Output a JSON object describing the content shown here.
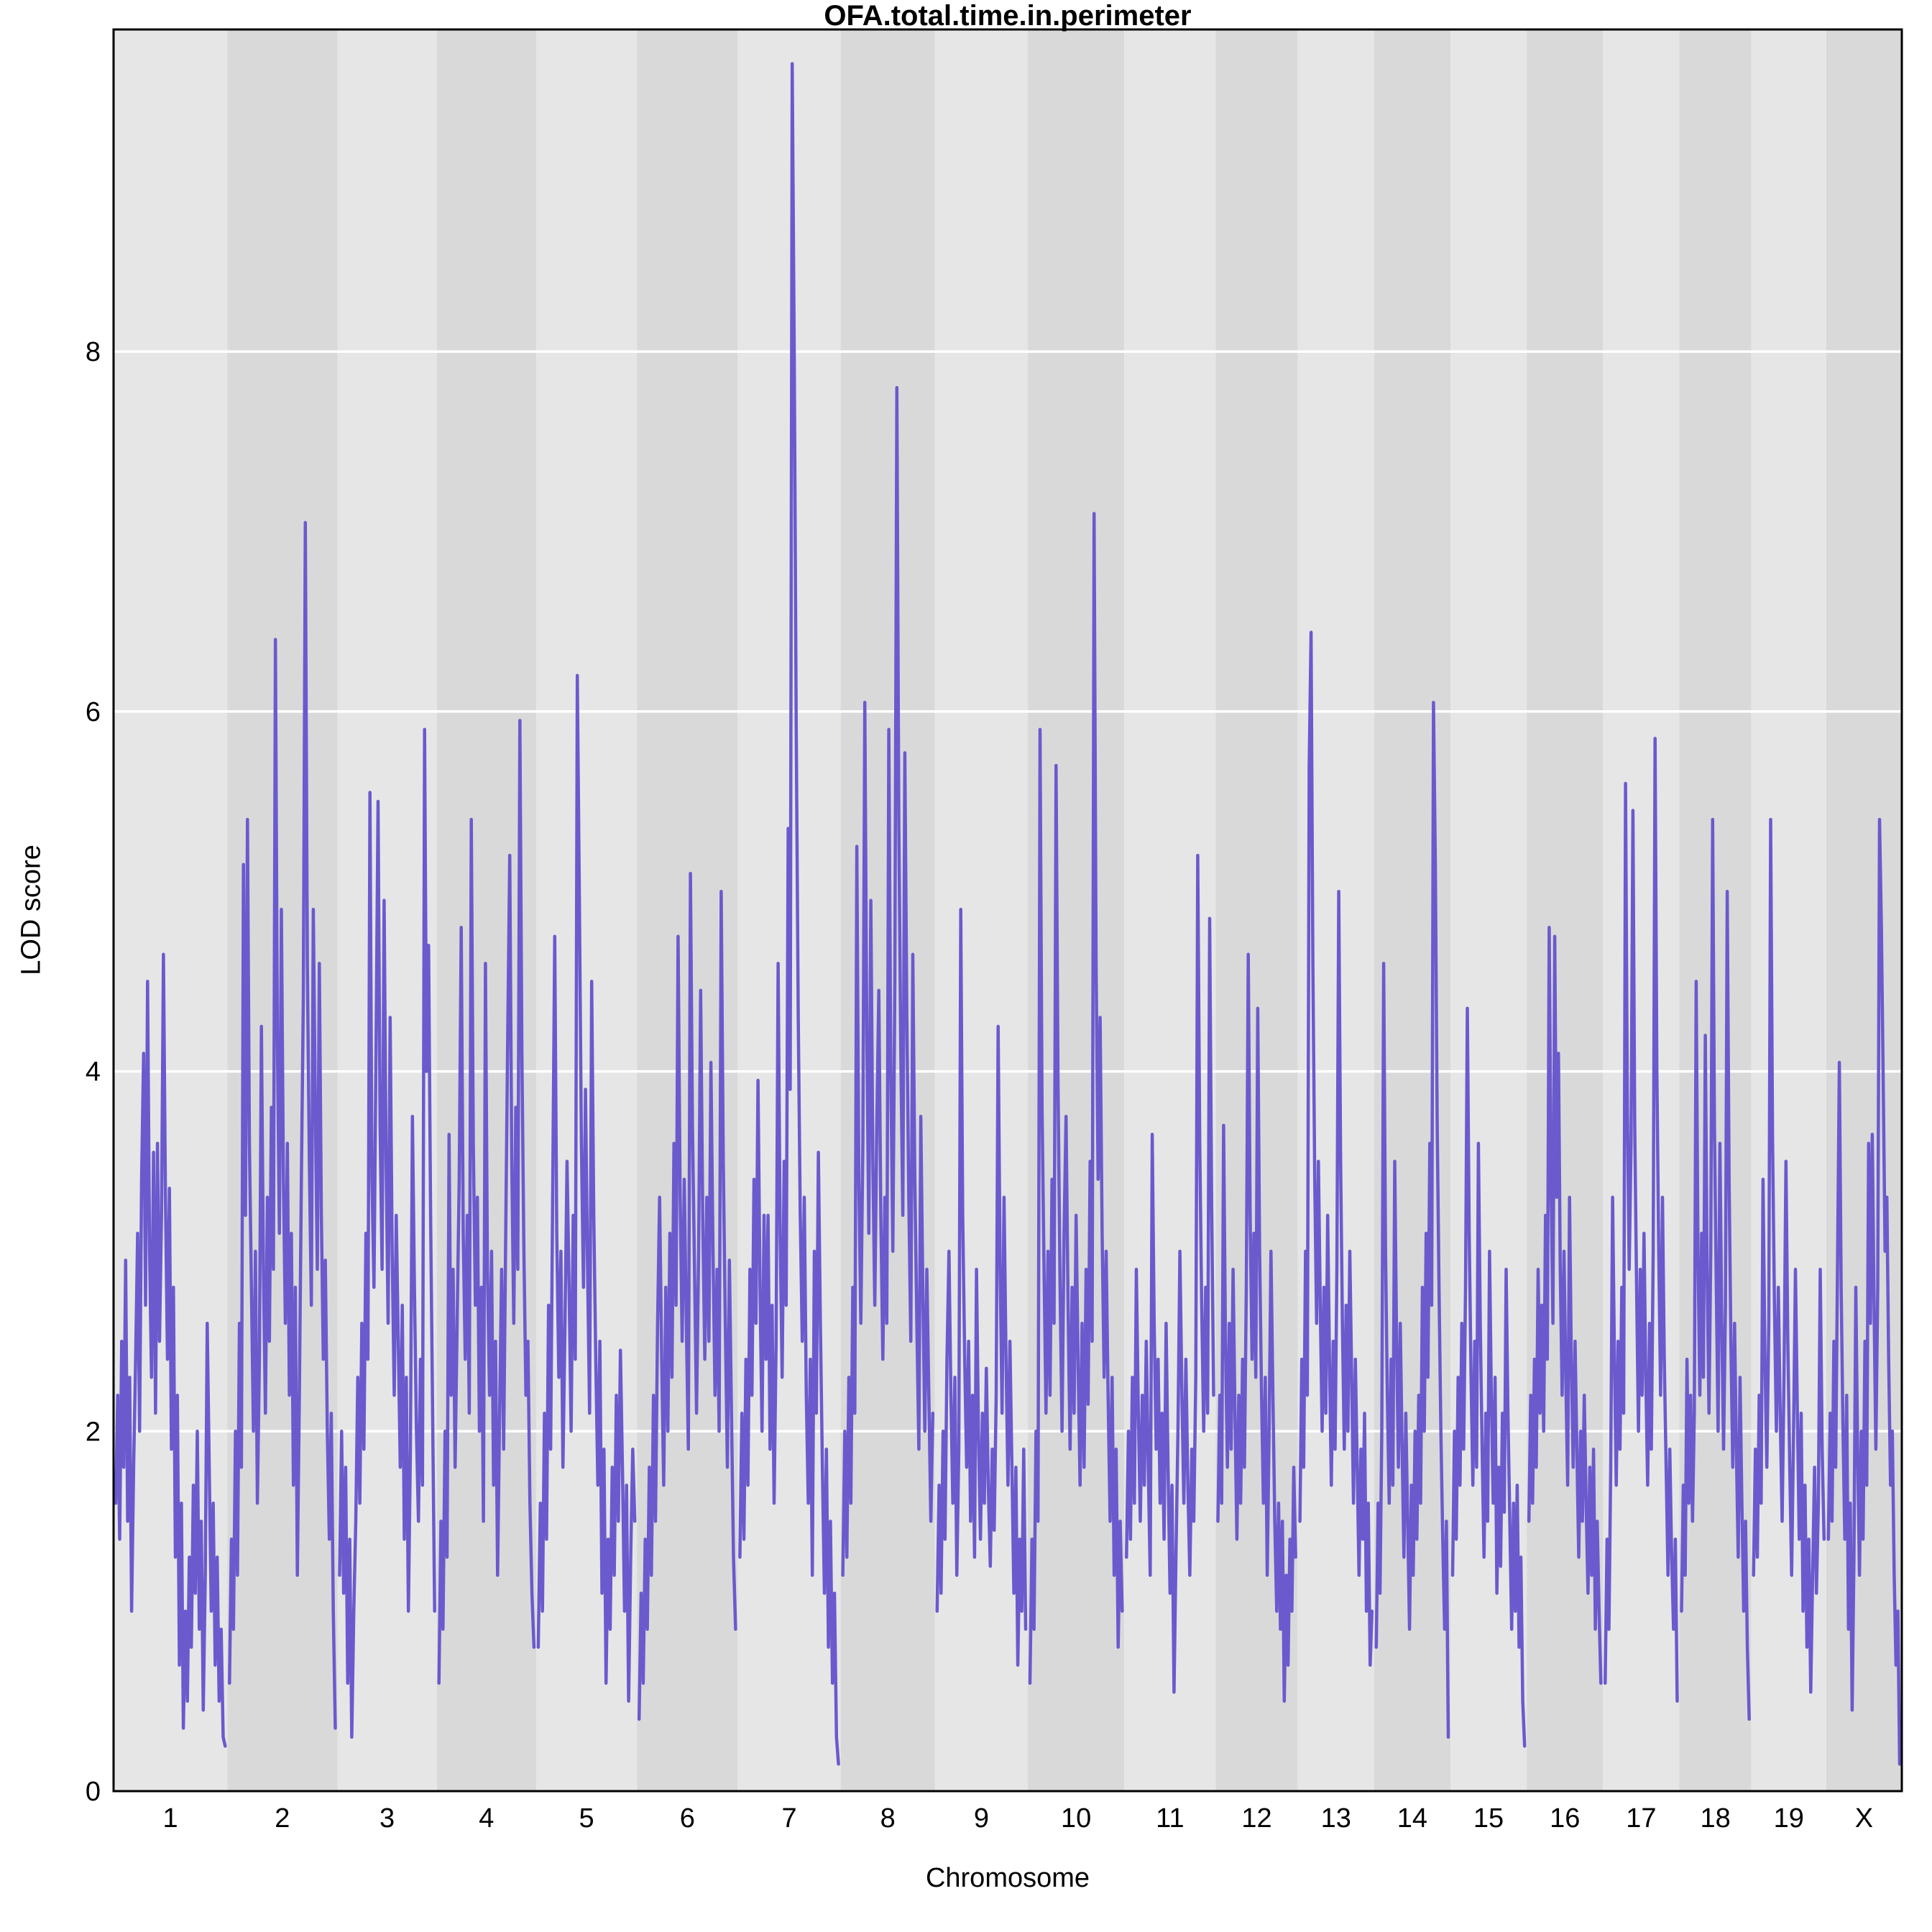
{
  "chart_data": {
    "type": "line",
    "title": "OFA.total.time.in.perimeter",
    "xlabel": "Chromosome",
    "ylabel": "LOD score",
    "ylim": [
      0,
      9.79
    ],
    "y_ticks": [
      0,
      2,
      4,
      6,
      8
    ],
    "grid": "horizontal-white-lines-at-ticks",
    "legend": "none",
    "series_name": "LOD",
    "series_color": "#6a5acd",
    "band_colors": [
      "#e6e6e6",
      "#d9d9d9"
    ],
    "grid_color": "#ffffff",
    "border_color": "#000000",
    "text_color": "#000000",
    "background_color": "#ffffff",
    "chromosomes": [
      {
        "label": "1",
        "width": 158,
        "lod": [
          1.6,
          2.2,
          1.4,
          2.5,
          1.8,
          2.95,
          1.5,
          2.3,
          1.0,
          1.8,
          2.4,
          3.1,
          2.0,
          3.4,
          4.1,
          2.7,
          4.5,
          3.0,
          2.3,
          3.55,
          2.1,
          3.6,
          2.5,
          3.2,
          4.65,
          3.3,
          2.4,
          3.35,
          1.9,
          2.8,
          1.3,
          2.2,
          0.7,
          1.6,
          0.35,
          1.0,
          0.5,
          1.3,
          0.8,
          1.7,
          1.1,
          2.0,
          0.9,
          1.5,
          0.45,
          1.2,
          2.6,
          1.8,
          1.0,
          1.6,
          0.7,
          1.3,
          0.5,
          0.9,
          0.3,
          0.25
        ]
      },
      {
        "label": "2",
        "width": 153,
        "lod": [
          0.6,
          1.4,
          0.9,
          2.0,
          1.2,
          2.6,
          1.8,
          5.15,
          3.2,
          5.4,
          3.6,
          2.8,
          2.0,
          3.0,
          1.6,
          2.4,
          4.25,
          2.9,
          2.1,
          3.3,
          2.5,
          3.8,
          2.9,
          6.4,
          4.2,
          3.1,
          4.9,
          3.4,
          2.6,
          3.6,
          2.2,
          3.1,
          1.7,
          2.8,
          1.2,
          2.2,
          3.4,
          4.4,
          7.05,
          4.6,
          3.5,
          2.7,
          4.9,
          3.8,
          2.9,
          4.6,
          3.2,
          2.4,
          2.95,
          2.0,
          1.4,
          2.1,
          1.0,
          0.35
        ]
      },
      {
        "label": "3",
        "width": 138,
        "lod": [
          1.2,
          2.0,
          1.1,
          1.8,
          0.6,
          1.4,
          0.3,
          1.0,
          1.5,
          2.3,
          1.6,
          2.6,
          1.9,
          3.1,
          2.4,
          5.55,
          3.4,
          2.8,
          4.1,
          5.5,
          3.7,
          2.9,
          4.95,
          3.5,
          2.6,
          4.3,
          3.0,
          2.2,
          3.2,
          2.5,
          1.8,
          2.7,
          1.4,
          2.3,
          1.0,
          1.9,
          3.75,
          2.8,
          2.0,
          1.5,
          2.4,
          1.7,
          5.9,
          4.0,
          4.7,
          3.2,
          2.1,
          1.0
        ]
      },
      {
        "label": "4",
        "width": 138,
        "lod": [
          0.6,
          1.5,
          0.9,
          2.0,
          1.3,
          3.65,
          2.2,
          2.9,
          1.8,
          2.6,
          3.4,
          4.8,
          3.1,
          2.4,
          3.2,
          2.1,
          5.4,
          3.6,
          2.7,
          3.3,
          2.0,
          2.8,
          1.5,
          4.6,
          2.9,
          2.2,
          3.0,
          1.7,
          2.5,
          1.2,
          2.1,
          2.9,
          1.9,
          3.1,
          4.2,
          5.2,
          3.5,
          2.6,
          3.8,
          2.9,
          5.95,
          4.1,
          3.0,
          2.2,
          2.5,
          1.6,
          1.1,
          0.8
        ]
      },
      {
        "label": "5",
        "width": 140,
        "lod": [
          0.8,
          1.6,
          1.0,
          2.1,
          1.4,
          2.7,
          1.9,
          3.3,
          4.75,
          3.1,
          2.3,
          3.0,
          1.8,
          2.6,
          3.5,
          2.8,
          2.0,
          3.2,
          2.4,
          6.2,
          4.95,
          3.6,
          2.8,
          3.9,
          2.9,
          2.1,
          4.5,
          3.2,
          2.4,
          1.7,
          2.5,
          1.1,
          1.9,
          0.6,
          1.4,
          0.9,
          1.8,
          1.2,
          2.2,
          1.5,
          2.45,
          1.8,
          1.0,
          1.7,
          0.5,
          1.3,
          1.9,
          1.5
        ]
      },
      {
        "label": "6",
        "width": 140,
        "lod": [
          0.4,
          1.1,
          0.6,
          1.4,
          0.9,
          1.8,
          1.2,
          2.2,
          1.5,
          2.6,
          3.3,
          2.4,
          1.7,
          2.8,
          2.0,
          3.1,
          2.3,
          3.6,
          2.7,
          4.75,
          3.3,
          2.5,
          3.4,
          2.6,
          1.9,
          5.1,
          3.7,
          2.9,
          2.1,
          3.0,
          4.45,
          3.2,
          2.4,
          3.3,
          2.5,
          4.05,
          3.0,
          2.2,
          2.9,
          2.0,
          5.0,
          3.5,
          2.6,
          1.8,
          2.95,
          2.1,
          1.3,
          0.9
        ]
      },
      {
        "label": "7",
        "width": 143,
        "lod": [
          1.3,
          2.1,
          1.4,
          2.4,
          1.7,
          2.9,
          2.2,
          3.4,
          2.6,
          3.95,
          2.8,
          2.0,
          3.2,
          2.4,
          3.2,
          1.9,
          2.7,
          1.6,
          2.5,
          4.6,
          3.1,
          2.3,
          3.5,
          2.7,
          5.35,
          3.9,
          9.6,
          8.0,
          5.9,
          4.3,
          3.2,
          2.5,
          3.3,
          2.2,
          1.6,
          2.4,
          1.2,
          3.0,
          2.1,
          3.55,
          2.6,
          1.8,
          1.1,
          1.9,
          0.8,
          1.5,
          0.6,
          1.1,
          0.3,
          0.15
        ]
      },
      {
        "label": "8",
        "width": 131,
        "lod": [
          1.2,
          2.0,
          1.3,
          2.3,
          1.6,
          2.8,
          2.1,
          5.25,
          3.4,
          2.6,
          3.6,
          6.05,
          4.2,
          3.1,
          4.95,
          3.5,
          2.7,
          3.7,
          4.45,
          3.2,
          2.4,
          3.3,
          2.6,
          5.9,
          4.0,
          3.0,
          4.5,
          7.8,
          5.4,
          4.1,
          3.2,
          5.77,
          4.3,
          3.3,
          2.5,
          4.65,
          3.4,
          2.6,
          1.9,
          3.75,
          2.8,
          2.0,
          2.9,
          2.2,
          1.5,
          2.1
        ]
      },
      {
        "label": "9",
        "width": 129,
        "lod": [
          1.0,
          1.7,
          1.1,
          2.0,
          1.4,
          2.4,
          3.0,
          2.2,
          1.6,
          2.3,
          1.2,
          1.9,
          4.9,
          3.2,
          2.4,
          1.8,
          2.5,
          1.5,
          2.2,
          1.3,
          2.9,
          2.0,
          1.4,
          2.1,
          1.6,
          2.35,
          1.7,
          1.25,
          1.9,
          1.45,
          2.2,
          4.25,
          2.9,
          2.1,
          3.3,
          2.4,
          1.7,
          2.5,
          1.8,
          1.1,
          1.8,
          0.7,
          1.4,
          1.0,
          1.9,
          0.9
        ]
      },
      {
        "label": "10",
        "width": 134,
        "lod": [
          0.6,
          1.4,
          0.9,
          2.0,
          1.5,
          5.9,
          3.8,
          2.9,
          2.1,
          3.0,
          2.2,
          3.4,
          2.6,
          5.7,
          3.9,
          2.8,
          2.0,
          3.1,
          3.75,
          2.7,
          1.9,
          2.8,
          2.1,
          3.2,
          2.4,
          1.7,
          2.6,
          1.8,
          2.9,
          2.15,
          3.5,
          2.5,
          7.1,
          4.6,
          3.4,
          4.3,
          3.1,
          2.3,
          3.0,
          2.2,
          1.5,
          2.3,
          1.2,
          1.9,
          0.8,
          1.5,
          1.0
        ]
      },
      {
        "label": "11",
        "width": 127,
        "lod": [
          1.3,
          2.0,
          1.4,
          2.3,
          1.6,
          2.9,
          2.1,
          1.5,
          2.2,
          1.7,
          2.5,
          1.8,
          1.2,
          3.65,
          2.6,
          1.9,
          2.4,
          1.6,
          2.1,
          1.4,
          2.6,
          1.8,
          1.1,
          1.7,
          0.55,
          1.3,
          2.0,
          3.0,
          2.2,
          1.6,
          2.4,
          1.7,
          1.2,
          1.9,
          1.5,
          2.3,
          5.2,
          3.6,
          2.7,
          2.0,
          2.8,
          2.1,
          4.85,
          3.3,
          2.2
        ]
      },
      {
        "label": "12",
        "width": 114,
        "lod": [
          1.5,
          2.2,
          1.6,
          3.7,
          2.5,
          1.8,
          2.6,
          1.9,
          2.9,
          2.1,
          1.4,
          2.2,
          1.6,
          2.4,
          1.8,
          2.8,
          4.65,
          3.2,
          2.4,
          3.1,
          2.3,
          4.35,
          3.0,
          2.2,
          1.6,
          2.3,
          1.2,
          2.0,
          3.0,
          2.2,
          1.5,
          1.0,
          1.6,
          0.9,
          1.5,
          0.5,
          1.2,
          0.7,
          1.4,
          1.0,
          1.8,
          1.3
        ]
      },
      {
        "label": "13",
        "width": 106,
        "lod": [
          1.5,
          2.4,
          1.8,
          3.0,
          2.2,
          5.7,
          6.44,
          4.6,
          3.4,
          2.6,
          3.5,
          2.7,
          2.0,
          2.8,
          2.1,
          3.2,
          2.4,
          1.7,
          2.5,
          1.9,
          2.9,
          5.0,
          3.5,
          2.6,
          1.9,
          2.7,
          2.0,
          3.0,
          2.3,
          1.6,
          2.4,
          1.8,
          1.2,
          1.9,
          1.4,
          2.1,
          1.0,
          1.6,
          0.7,
          1.0
        ]
      },
      {
        "label": "14",
        "width": 106,
        "lod": [
          0.8,
          1.6,
          1.1,
          2.0,
          4.6,
          3.0,
          2.2,
          1.6,
          2.4,
          1.7,
          3.5,
          2.5,
          1.8,
          2.6,
          1.9,
          1.3,
          2.1,
          1.5,
          0.9,
          1.7,
          1.2,
          2.0,
          1.4,
          2.2,
          1.6,
          2.8,
          2.0,
          3.1,
          2.3,
          3.6,
          2.7,
          6.05,
          5.15,
          3.7,
          2.8,
          2.0,
          1.4,
          0.9,
          1.5,
          0.3
        ]
      },
      {
        "label": "15",
        "width": 106,
        "lod": [
          1.2,
          2.0,
          1.4,
          2.3,
          1.7,
          2.6,
          1.9,
          2.8,
          4.35,
          3.1,
          2.3,
          1.7,
          2.5,
          1.8,
          3.6,
          2.6,
          1.9,
          1.3,
          2.1,
          1.5,
          3.0,
          2.2,
          1.6,
          2.3,
          1.1,
          1.8,
          1.25,
          2.1,
          1.55,
          2.9,
          2.1,
          1.5,
          0.9,
          1.6,
          1.0,
          1.7,
          0.8,
          1.3,
          0.5,
          0.25
        ]
      },
      {
        "label": "16",
        "width": 106,
        "lod": [
          1.5,
          2.2,
          1.6,
          2.4,
          1.8,
          2.9,
          2.1,
          2.7,
          2.0,
          3.2,
          2.4,
          4.8,
          3.4,
          2.6,
          4.75,
          3.3,
          4.1,
          2.9,
          2.2,
          3.0,
          2.3,
          1.7,
          3.3,
          2.4,
          1.8,
          2.5,
          1.9,
          1.3,
          2.0,
          1.5,
          2.2,
          1.6,
          1.1,
          1.8,
          1.2,
          1.9,
          0.9,
          1.5,
          1.0,
          0.6
        ]
      },
      {
        "label": "17",
        "width": 106,
        "lod": [
          0.6,
          1.4,
          0.9,
          1.8,
          3.3,
          2.4,
          1.7,
          2.5,
          1.9,
          2.8,
          2.1,
          5.6,
          3.8,
          2.9,
          3.6,
          5.45,
          3.7,
          2.8,
          2.0,
          2.9,
          2.2,
          3.1,
          2.3,
          1.7,
          2.6,
          1.9,
          3.0,
          5.85,
          4.0,
          3.0,
          2.2,
          3.3,
          2.4,
          1.8,
          1.2,
          1.9,
          1.3,
          0.9,
          1.4,
          0.5
        ]
      },
      {
        "label": "18",
        "width": 100,
        "lod": [
          1.0,
          1.7,
          1.2,
          2.4,
          1.6,
          2.2,
          1.5,
          2.1,
          4.5,
          3.0,
          2.2,
          3.1,
          2.3,
          4.2,
          2.9,
          2.1,
          3.0,
          5.4,
          3.7,
          2.8,
          2.0,
          3.6,
          2.6,
          1.9,
          2.7,
          5.0,
          3.4,
          2.5,
          1.8,
          2.6,
          1.9,
          1.3,
          2.3,
          1.6,
          1.0,
          1.5,
          0.8,
          0.4
        ]
      },
      {
        "label": "19",
        "width": 104,
        "lod": [
          1.2,
          1.9,
          1.3,
          2.2,
          1.6,
          3.4,
          2.4,
          1.8,
          2.6,
          5.4,
          3.6,
          2.7,
          2.0,
          2.8,
          2.1,
          1.5,
          2.3,
          3.5,
          2.5,
          1.8,
          1.2,
          2.0,
          2.9,
          2.1,
          1.4,
          2.1,
          1.0,
          1.7,
          0.8,
          1.4,
          0.55,
          1.2,
          1.8,
          1.1,
          1.6,
          2.9,
          1.9,
          1.4
        ]
      },
      {
        "label": "X",
        "width": 105,
        "lod": [
          1.4,
          2.1,
          1.5,
          2.5,
          1.8,
          2.9,
          4.05,
          2.8,
          2.0,
          1.4,
          2.2,
          0.9,
          1.6,
          0.45,
          1.3,
          2.8,
          1.9,
          1.2,
          2.0,
          1.4,
          2.5,
          1.7,
          3.6,
          2.6,
          3.65,
          2.7,
          1.9,
          2.8,
          5.4,
          4.8,
          3.95,
          3.0,
          3.3,
          2.4,
          1.7,
          2.0,
          1.2,
          0.7,
          1.0,
          0.15
        ]
      }
    ]
  }
}
